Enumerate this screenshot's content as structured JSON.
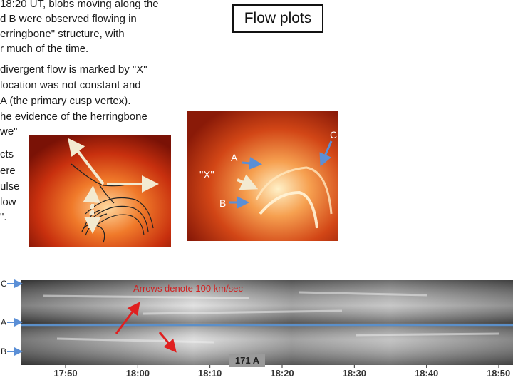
{
  "paragraphs": [
    [
      "18:20 UT, blobs moving along the",
      "d B were observed flowing in",
      "erringbone\" structure, with",
      "r much of the time."
    ],
    [
      "divergent flow is marked by \"X\"",
      "location was not constant and",
      "A (the primary cusp vertex).",
      "he evidence of the herringbone",
      "we\""
    ],
    [
      "cts",
      "ere",
      "ulse",
      "low",
      "\"."
    ]
  ],
  "title": "Flow plots",
  "image_labels": {
    "c": "C",
    "a": "A",
    "x": "\"X\"",
    "b": "B"
  },
  "stack_plot": {
    "row_labels": [
      "C",
      "A",
      "B"
    ],
    "note": "Arrows denote 100 km/sec",
    "wavelength": "171 A",
    "time_ticks": [
      "17:50",
      "18:00",
      "18:10",
      "18:20",
      "18:30",
      "18:40",
      "18:50"
    ]
  }
}
